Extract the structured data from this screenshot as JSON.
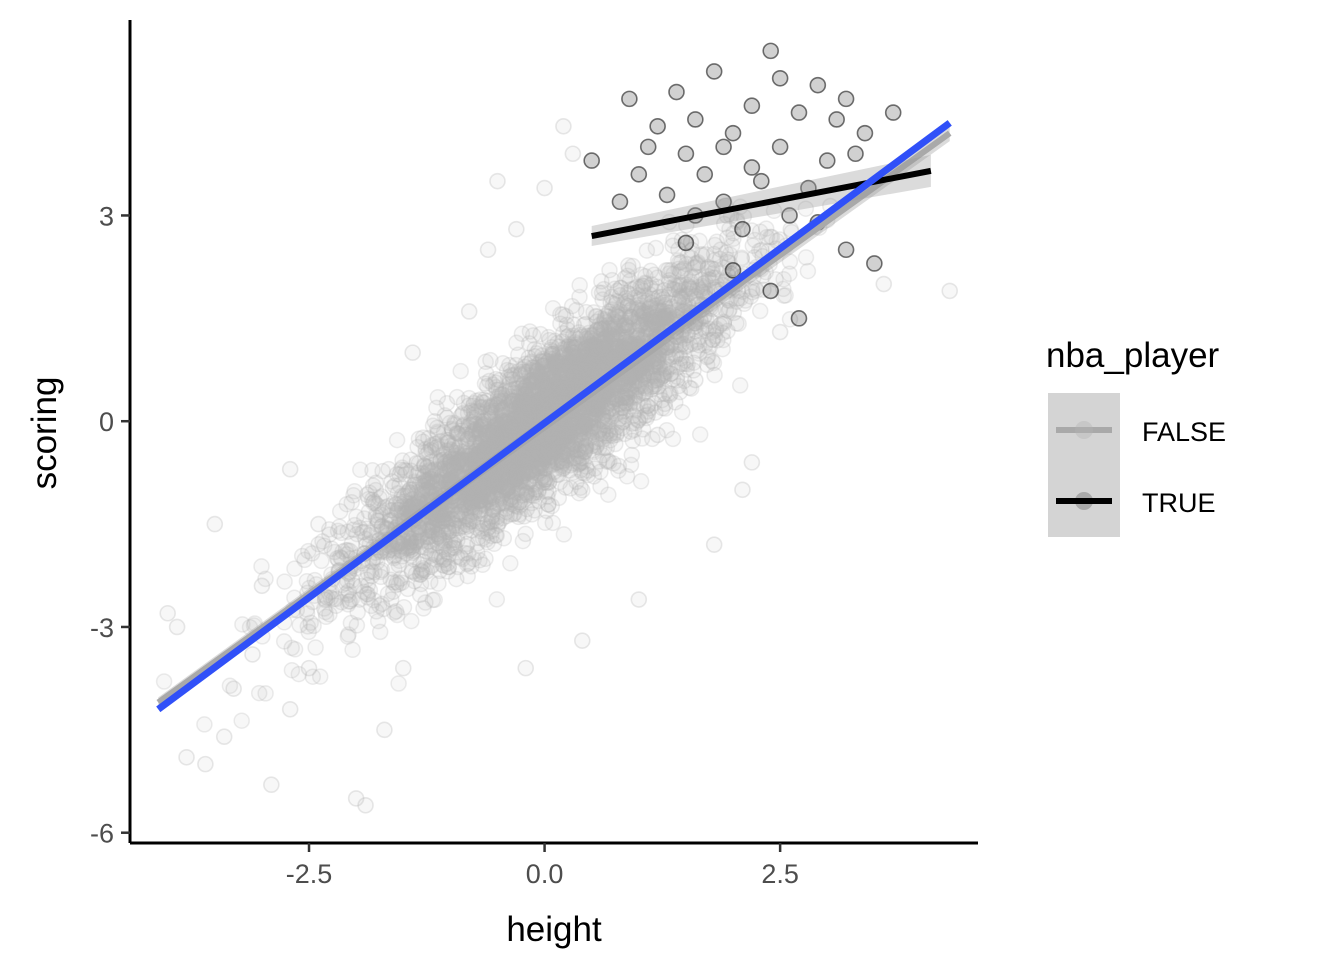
{
  "chart_data": {
    "type": "scatter",
    "xlabel": "height",
    "ylabel": "scoring",
    "xlim": [
      -4.4,
      4.6
    ],
    "ylim": [
      -6.15,
      5.85
    ],
    "x_ticks": [
      -2.5,
      0.0,
      2.5
    ],
    "x_tick_labels": [
      "-2.5",
      "0.0",
      "2.5"
    ],
    "y_ticks": [
      -6,
      -3,
      0,
      3
    ],
    "y_tick_labels": [
      "-6",
      "-3",
      "0",
      "3"
    ],
    "grid": false,
    "legend": {
      "title": "nba_player",
      "placement": "right",
      "entries": [
        {
          "label": "FALSE",
          "color": "#a9a9a9"
        },
        {
          "label": "TRUE",
          "color": "#000000"
        }
      ]
    },
    "series": [
      {
        "name": "FALSE",
        "kind": "points",
        "color": "#b3b3b3",
        "alpha": 0.1,
        "points": [
          [
            -4.0,
            -2.8
          ],
          [
            -3.9,
            -3.0
          ],
          [
            -3.8,
            -4.9
          ],
          [
            -3.6,
            -5.0
          ],
          [
            -3.4,
            -4.6
          ],
          [
            -3.3,
            -3.9
          ],
          [
            -3.1,
            -3.4
          ],
          [
            -3.0,
            -2.4
          ],
          [
            -2.9,
            -5.3
          ],
          [
            -2.7,
            -4.2
          ],
          [
            -2.5,
            -3.6
          ],
          [
            -2.4,
            -1.5
          ],
          [
            -2.2,
            -2.0
          ],
          [
            -2.0,
            -5.5
          ],
          [
            -1.9,
            -5.6
          ],
          [
            -1.7,
            -4.5
          ],
          [
            -1.5,
            -3.6
          ],
          [
            -1.3,
            -2.2
          ],
          [
            -1.1,
            -0.6
          ],
          [
            -1.4,
            1.0
          ],
          [
            -0.8,
            1.6
          ],
          [
            -0.6,
            2.5
          ],
          [
            -0.3,
            2.8
          ],
          [
            0.0,
            3.4
          ],
          [
            -0.5,
            3.5
          ],
          [
            0.3,
            3.9
          ],
          [
            0.2,
            4.3
          ],
          [
            1.2,
            -0.2
          ],
          [
            1.6,
            0.6
          ],
          [
            2.2,
            -0.6
          ],
          [
            2.5,
            1.3
          ],
          [
            2.1,
            -1.0
          ],
          [
            1.0,
            -2.6
          ],
          [
            0.4,
            -3.2
          ],
          [
            -0.2,
            -3.6
          ],
          [
            4.3,
            1.9
          ],
          [
            3.6,
            2.0
          ],
          [
            -3.5,
            -1.5
          ],
          [
            -2.7,
            -0.7
          ],
          [
            1.8,
            -1.8
          ]
        ],
        "cloud_center": [
          0.0,
          0.0
        ],
        "cloud_sd": [
          1.0,
          1.14
        ],
        "cloud_correlation": 0.88
      },
      {
        "name": "TRUE",
        "kind": "points",
        "color": "#000000",
        "alpha": 0.18,
        "points": [
          [
            0.5,
            3.8
          ],
          [
            0.8,
            3.2
          ],
          [
            0.9,
            4.7
          ],
          [
            1.0,
            3.6
          ],
          [
            1.1,
            4.0
          ],
          [
            1.2,
            4.3
          ],
          [
            1.3,
            3.3
          ],
          [
            1.4,
            4.8
          ],
          [
            1.5,
            3.9
          ],
          [
            1.6,
            4.4
          ],
          [
            1.7,
            3.6
          ],
          [
            1.8,
            5.1
          ],
          [
            1.9,
            3.2
          ],
          [
            2.0,
            4.2
          ],
          [
            2.1,
            2.8
          ],
          [
            2.2,
            4.6
          ],
          [
            2.3,
            3.5
          ],
          [
            2.4,
            5.4
          ],
          [
            2.5,
            4.0
          ],
          [
            2.6,
            3.0
          ],
          [
            2.7,
            4.5
          ],
          [
            2.8,
            3.4
          ],
          [
            2.9,
            4.9
          ],
          [
            3.0,
            3.8
          ],
          [
            3.1,
            4.4
          ],
          [
            3.2,
            2.5
          ],
          [
            3.3,
            3.9
          ],
          [
            3.4,
            4.2
          ],
          [
            3.5,
            2.3
          ],
          [
            3.7,
            4.5
          ],
          [
            1.5,
            2.6
          ],
          [
            2.0,
            2.2
          ],
          [
            2.4,
            1.9
          ],
          [
            2.7,
            1.5
          ],
          [
            1.9,
            4.0
          ],
          [
            2.2,
            3.7
          ],
          [
            1.6,
            3.0
          ],
          [
            2.9,
            2.9
          ],
          [
            3.2,
            4.7
          ],
          [
            2.5,
            5.0
          ]
        ]
      },
      {
        "name": "FALSE",
        "kind": "smooth",
        "color": "#a9a9a9",
        "x": [
          -4.1,
          4.3
        ],
        "y": [
          -4.1,
          4.2
        ]
      },
      {
        "name": "TRUE",
        "kind": "smooth",
        "color": "#000000",
        "x": [
          0.5,
          4.1
        ],
        "y": [
          2.7,
          3.65
        ]
      },
      {
        "name": "",
        "kind": "overall fit",
        "color": "#3050f8",
        "x": [
          -4.1,
          4.3
        ],
        "y": [
          -4.2,
          4.35
        ]
      }
    ]
  }
}
